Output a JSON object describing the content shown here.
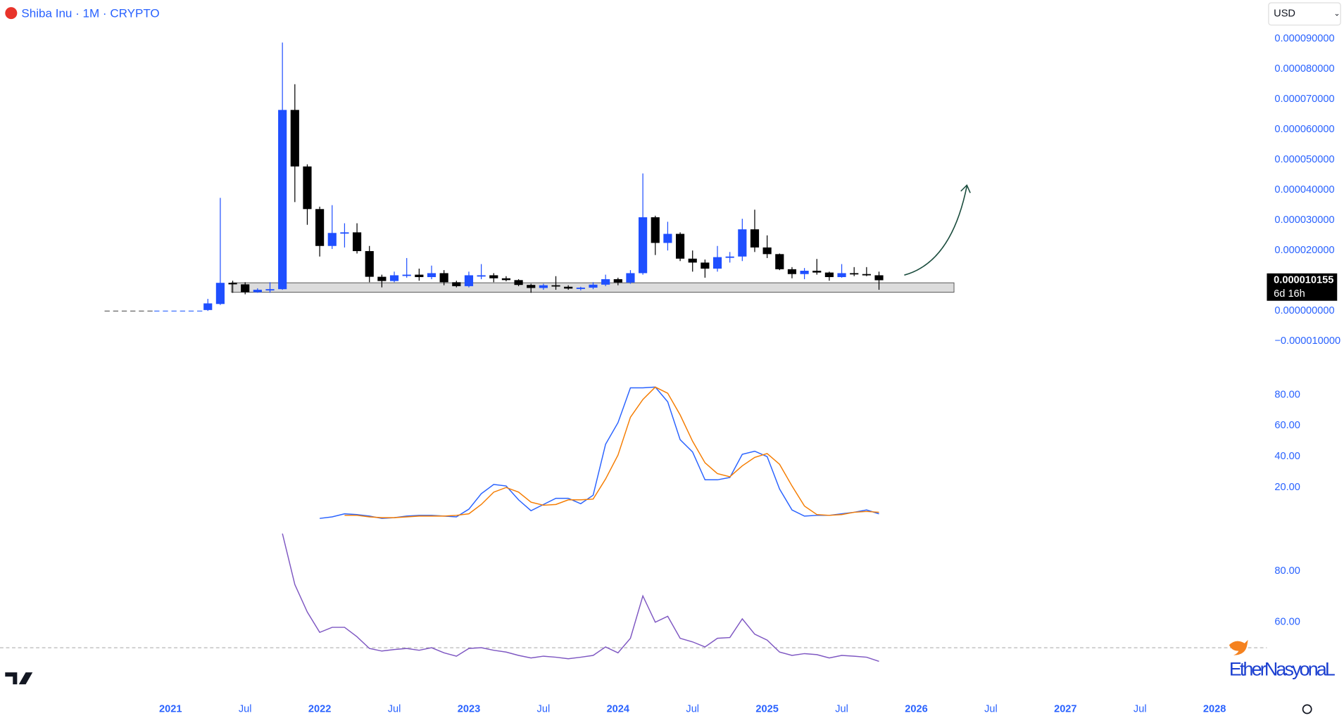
{
  "chart_data": [
    {
      "type": "candlestick",
      "title": "Shiba Inu · 1M · CRYPTO",
      "currency": "USD",
      "countdown": "6d 16h",
      "watermark": "EtherNasyonaL",
      "up_color": "#1f4fff",
      "down_color": "#000000",
      "x": [
        "2021-04",
        "2021-05",
        "2021-06",
        "2021-07",
        "2021-08",
        "2021-09",
        "2021-10",
        "2021-11",
        "2021-12",
        "2022-01",
        "2022-02",
        "2022-03",
        "2022-04",
        "2022-05",
        "2022-06",
        "2022-07",
        "2022-08",
        "2022-09",
        "2022-10",
        "2022-11",
        "2022-12",
        "2023-01",
        "2023-02",
        "2023-03",
        "2023-04",
        "2023-05",
        "2023-06",
        "2023-07",
        "2023-08",
        "2023-09",
        "2023-10",
        "2023-11",
        "2023-12",
        "2024-01",
        "2024-02",
        "2024-03",
        "2024-04",
        "2024-05",
        "2024-06",
        "2024-07",
        "2024-08",
        "2024-09",
        "2024-10",
        "2024-11",
        "2024-12",
        "2025-01",
        "2025-02",
        "2025-03",
        "2025-04",
        "2025-05",
        "2025-06",
        "2025-07",
        "2025-08",
        "2025-09",
        "2025-10"
      ],
      "open": [
        3e-07,
        2.3e-06,
        9.3e-06,
        8.8e-06,
        6.2e-06,
        6.8e-06,
        7.2e-06,
        6.65e-05,
        4.78e-05,
        3.37e-05,
        2.15e-05,
        2.58e-05,
        2.6e-05,
        1.98e-05,
        1.13e-05,
        9.9e-06,
        1.18e-05,
        1.2e-05,
        1.12e-05,
        1.25e-05,
        9.5e-06,
        8.2e-06,
        1.15e-05,
        1.18e-05,
        1.08e-05,
        1.02e-05,
        8.6e-06,
        7.6e-06,
        8.5e-06,
        8e-06,
        7.4e-06,
        7.7e-06,
        8.7e-06,
        1.05e-05,
        9.4e-06,
        1.25e-05,
        3.1e-05,
        2.25e-05,
        2.55e-05,
        1.73e-05,
        1.6e-05,
        1.4e-05,
        1.78e-05,
        1.8e-05,
        2.7e-05,
        2.1e-05,
        1.88e-05,
        1.38e-05,
        1.22e-05,
        1.33e-05,
        1.27e-05,
        1.12e-05,
        1.25e-05,
        1.22e-05,
        1.18e-05
      ],
      "high": [
        4e-06,
        3.74e-05,
        1e-05,
        9.5e-06,
        7.5e-06,
        9.5e-06,
        8.88e-05,
        7.5e-05,
        4.85e-05,
        3.45e-05,
        3.5e-05,
        2.9e-05,
        2.9e-05,
        2.15e-05,
        1.2e-05,
        1.3e-05,
        1.75e-05,
        1.4e-05,
        1.5e-05,
        1.35e-05,
        1e-05,
        1.3e-05,
        1.55e-05,
        1.25e-05,
        1.15e-05,
        1.05e-05,
        9e-06,
        9e-06,
        1.15e-05,
        8.5e-06,
        8e-06,
        9.5e-06,
        1.2e-05,
        1.1e-05,
        1.35e-05,
        4.55e-05,
        3.15e-05,
        2.95e-05,
        2.6e-05,
        2e-05,
        1.7e-05,
        2.15e-05,
        1.95e-05,
        3.05e-05,
        3.35e-05,
        2.5e-05,
        1.9e-05,
        1.45e-05,
        1.42e-05,
        1.72e-05,
        1.3e-05,
        1.55e-05,
        1.45e-05,
        1.45e-05,
        1.3e-05
      ],
      "low": [
        0.0,
        2e-06,
        6e-06,
        5.5e-06,
        6e-06,
        6e-06,
        7e-06,
        3.6e-05,
        2.85e-05,
        1.8e-05,
        2.05e-05,
        2.1e-05,
        1.9e-05,
        9.5e-06,
        7.8e-06,
        9.5e-06,
        1.1e-05,
        1e-05,
        1.05e-05,
        8.5e-06,
        7.8e-06,
        7.8e-06,
        1.05e-05,
        9.5e-06,
        9.8e-06,
        8.2e-06,
        6e-06,
        7e-06,
        7e-06,
        7e-06,
        6.8e-06,
        7.2e-06,
        8.2e-06,
        8.5e-06,
        9e-06,
        1.2e-05,
        1.85e-05,
        2e-05,
        1.65e-05,
        1.3e-05,
        1.1e-05,
        1.3e-05,
        1.6e-05,
        1.65e-05,
        1.95e-05,
        1.75e-05,
        1.35e-05,
        1.08e-05,
        1.05e-05,
        1.2e-05,
        1e-05,
        1.1e-05,
        1.15e-05,
        1.15e-05,
        7e-06
      ],
      "close": [
        2.5e-06,
        9.3e-06,
        8.8e-06,
        6.2e-06,
        7e-06,
        7.2e-06,
        6.65e-05,
        4.78e-05,
        3.37e-05,
        2.15e-05,
        2.58e-05,
        2.6e-05,
        1.98e-05,
        1.13e-05,
        9.9e-06,
        1.18e-05,
        1.2e-05,
        1.12e-05,
        1.25e-05,
        9.5e-06,
        8.2e-06,
        1.18e-05,
        1.18e-05,
        1.08e-05,
        1.02e-05,
        8.6e-06,
        7.6e-06,
        8.5e-06,
        8.2e-06,
        7.4e-06,
        7.7e-06,
        8.7e-06,
        1.05e-05,
        9.4e-06,
        1.25e-05,
        3.1e-05,
        2.25e-05,
        2.55e-05,
        1.73e-05,
        1.6e-05,
        1.4e-05,
        1.78e-05,
        1.8e-05,
        2.7e-05,
        2.1e-05,
        1.88e-05,
        1.38e-05,
        1.22e-05,
        1.33e-05,
        1.27e-05,
        1.12e-05,
        1.25e-05,
        1.22e-05,
        1.18e-05,
        1.0155e-05
      ],
      "xlim": [
        "2019-11",
        "2028-05"
      ],
      "xticks": [
        {
          "value": "2021-01",
          "label": "2021"
        },
        {
          "value": "2021-07",
          "label": "Jul"
        },
        {
          "value": "2022-01",
          "label": "2022"
        },
        {
          "value": "2022-07",
          "label": "Jul"
        },
        {
          "value": "2023-01",
          "label": "2023"
        },
        {
          "value": "2023-07",
          "label": "Jul"
        },
        {
          "value": "2024-01",
          "label": "2024"
        },
        {
          "value": "2024-07",
          "label": "Jul"
        },
        {
          "value": "2025-01",
          "label": "2025"
        },
        {
          "value": "2025-07",
          "label": "Jul"
        },
        {
          "value": "2026-01",
          "label": "2026"
        },
        {
          "value": "2026-07",
          "label": "Jul"
        },
        {
          "value": "2027-01",
          "label": "2027"
        },
        {
          "value": "2027-07",
          "label": "Jul"
        },
        {
          "value": "2028-01",
          "label": "2028"
        }
      ],
      "ylim": [
        -1.08e-05,
        9.4e-05
      ],
      "yticks": [
        {
          "value": 9e-05,
          "label": "0.000090000"
        },
        {
          "value": 8e-05,
          "label": "0.000080000"
        },
        {
          "value": 7e-05,
          "label": "0.000070000"
        },
        {
          "value": 6e-05,
          "label": "0.000060000"
        },
        {
          "value": 5e-05,
          "label": "0.000050000"
        },
        {
          "value": 4e-05,
          "label": "0.000040000"
        },
        {
          "value": 3e-05,
          "label": "0.000030000"
        },
        {
          "value": 2e-05,
          "label": "0.000020000"
        },
        {
          "value": 0,
          "label": "0.000000000"
        },
        {
          "value": -1e-05,
          "label": "−0.000010000"
        }
      ]
    },
    {
      "type": "line",
      "ylim": [
        -6,
        91
      ],
      "yticks": [
        {
          "value": 80,
          "label": "80.00"
        },
        {
          "value": 60,
          "label": "60.00"
        },
        {
          "value": 40,
          "label": "40.00"
        },
        {
          "value": 20,
          "label": "20.00"
        }
      ],
      "series": [
        {
          "color": "#2962ff",
          "values": [
            null,
            null,
            null,
            null,
            null,
            null,
            null,
            null,
            null,
            0,
            1,
            3,
            2.5,
            1.5,
            0,
            0.5,
            1.5,
            2,
            2,
            1.5,
            1,
            6,
            16,
            22,
            21,
            12,
            5,
            9,
            13,
            13,
            9.5,
            15,
            48,
            62,
            84.5,
            84.5,
            85,
            75.5,
            51,
            43,
            25,
            25,
            26.5,
            41.5,
            43.5,
            40,
            19,
            5.5,
            1.5,
            2,
            2,
            3,
            4,
            5.5,
            3
          ]
        },
        {
          "color": "#f57c00",
          "values": [
            null,
            null,
            null,
            null,
            null,
            null,
            null,
            null,
            null,
            null,
            null,
            2,
            2,
            1,
            0.5,
            0.5,
            1,
            1.5,
            1.5,
            1.5,
            2,
            3,
            9,
            17,
            20,
            17,
            10.5,
            8.5,
            9,
            12,
            12,
            12.5,
            25.5,
            41,
            65.5,
            77,
            85,
            81,
            67,
            50,
            36,
            29,
            27,
            34,
            39.5,
            42,
            35,
            21,
            8,
            2.5,
            2,
            2.5,
            4,
            4.5,
            4
          ]
        }
      ]
    },
    {
      "type": "line",
      "ylim": [
        35,
        97
      ],
      "yticks": [
        {
          "value": 80,
          "label": "80.00"
        },
        {
          "value": 60,
          "label": "60.00"
        }
      ],
      "hline": 50,
      "series": [
        {
          "color": "#7e57c2",
          "values": [
            null,
            null,
            null,
            null,
            null,
            null,
            94.7,
            74.7,
            64,
            56,
            58,
            58,
            54.3,
            49.7,
            48.7,
            49.3,
            49.7,
            49,
            50,
            48,
            46.7,
            49.7,
            50,
            49,
            48.3,
            47,
            46,
            46.7,
            46.3,
            45.7,
            46.3,
            47,
            50.3,
            48,
            53.7,
            70.3,
            60,
            62.3,
            53.7,
            52.3,
            50.3,
            53.7,
            54,
            61.3,
            55.3,
            53,
            48.3,
            47,
            47.7,
            47.3,
            46,
            47,
            46.7,
            46.3,
            44.7
          ]
        }
      ]
    }
  ]
}
